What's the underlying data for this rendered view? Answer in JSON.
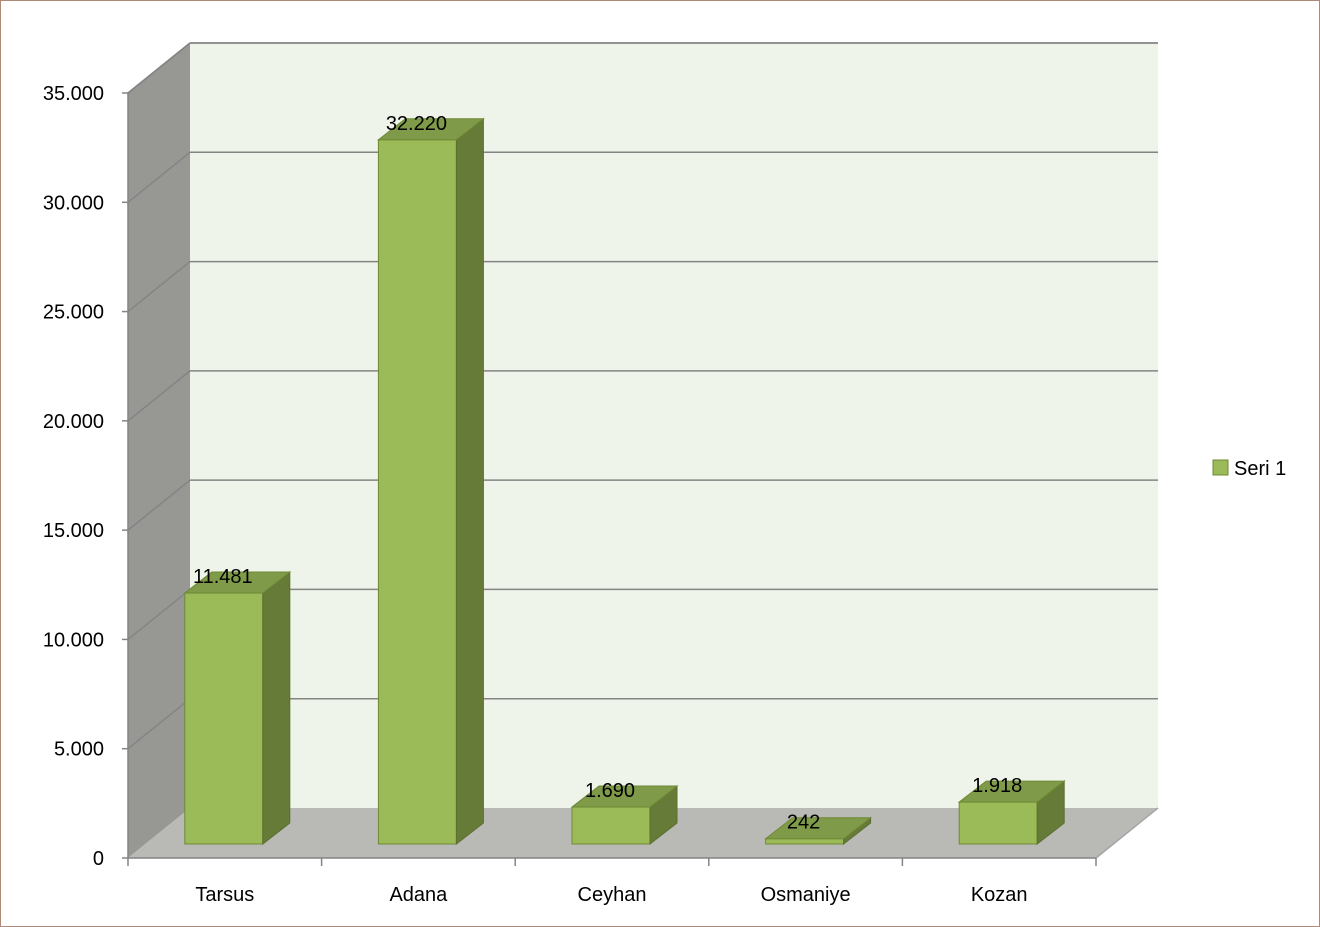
{
  "chart_data": {
    "type": "bar",
    "categories": [
      "Tarsus",
      "Adana",
      "Ceyhan",
      "Osmaniye",
      "Kozan"
    ],
    "series": [
      {
        "name": "Seri 1",
        "values": [
          11481,
          32220,
          1690,
          242,
          1918
        ],
        "color": "#9bbb59",
        "side_color": "#677b38",
        "top_color": "#7f9a48"
      }
    ],
    "data_labels": [
      "11.481",
      "32.220",
      "1.690",
      "242",
      "1.918"
    ],
    "y_ticks": [
      0,
      5000,
      10000,
      15000,
      20000,
      25000,
      30000,
      35000
    ],
    "y_tick_labels": [
      "0",
      "5.000",
      "10.000",
      "15.000",
      "20.000",
      "25.000",
      "30.000",
      "35.000"
    ],
    "ylim": [
      0,
      35000
    ],
    "grid": true,
    "legend": {
      "position": "right"
    },
    "three_d": true,
    "colors": {
      "back_wall": "#eef4e9",
      "side_wall": "#979894",
      "floor": "#b9bab6",
      "gridline": "#848484"
    }
  }
}
